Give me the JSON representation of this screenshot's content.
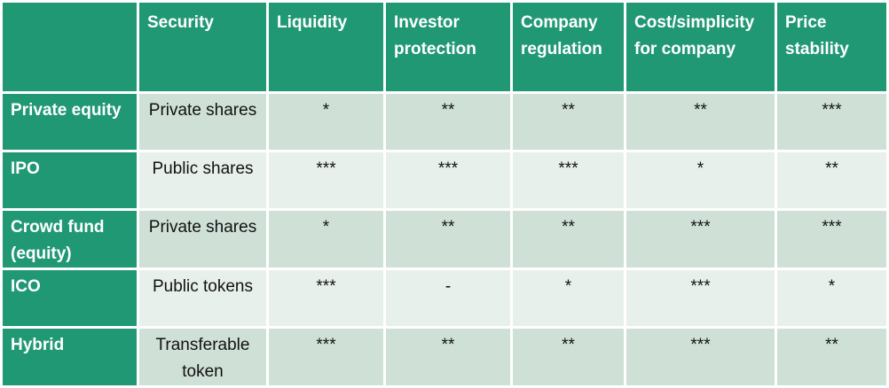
{
  "table": {
    "headers": [
      "",
      "Security",
      "Liquidity",
      "Investor protection",
      "Company regulation",
      "Cost/simplicity for company",
      "Price stability"
    ],
    "rows": [
      {
        "label": "Private equity",
        "security": "Private shares",
        "liquidity": "*",
        "investor_protection": "**",
        "company_regulation": "**",
        "cost_simplicity": "**",
        "price_stability": "***"
      },
      {
        "label": "IPO",
        "security": "Public shares",
        "liquidity": "***",
        "investor_protection": "***",
        "company_regulation": "***",
        "cost_simplicity": "*",
        "price_stability": "**"
      },
      {
        "label": "Crowd fund (equity)",
        "security": "Private shares",
        "liquidity": "*",
        "investor_protection": "**",
        "company_regulation": "**",
        "cost_simplicity": "***",
        "price_stability": "***"
      },
      {
        "label": "ICO",
        "security": "Public tokens",
        "liquidity": "***",
        "investor_protection": "-",
        "company_regulation": "*",
        "cost_simplicity": "***",
        "price_stability": "*"
      },
      {
        "label": "Hybrid",
        "security": "Transferable token",
        "liquidity": "***",
        "investor_protection": "**",
        "company_regulation": "**",
        "cost_simplicity": "***",
        "price_stability": "**"
      }
    ]
  },
  "colors": {
    "header_bg": "#219874",
    "row_odd_bg": "#cfe0d7",
    "row_even_bg": "#e8f0eb"
  }
}
